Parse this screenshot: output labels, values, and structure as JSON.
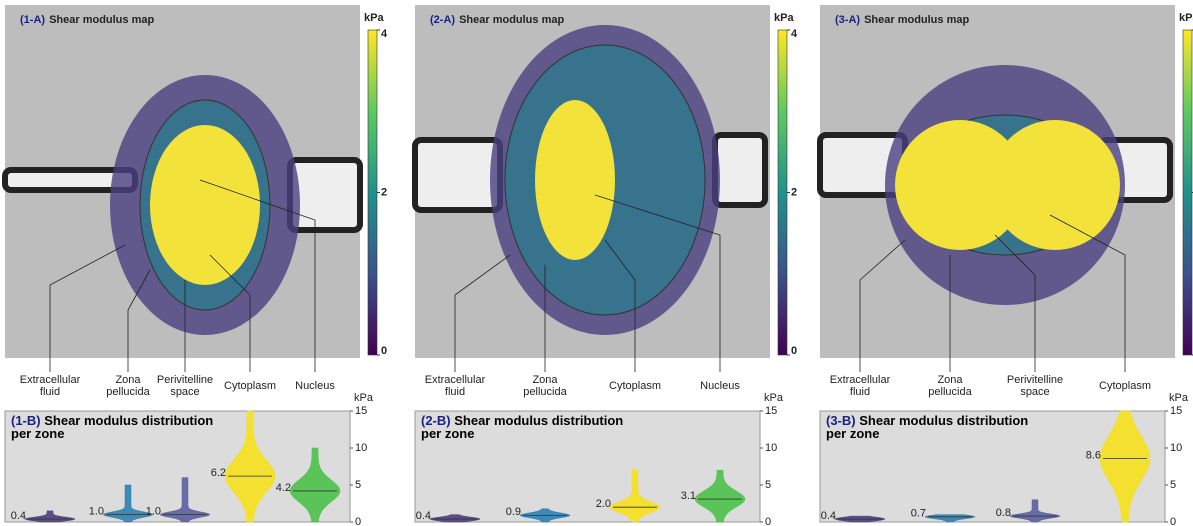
{
  "maps": [
    {
      "label": "(1-A)",
      "title": "Shear modulus map",
      "unit": "kPa",
      "lim": [
        0,
        4
      ],
      "ticks": [
        0,
        2,
        4
      ]
    },
    {
      "label": "(2-A)",
      "title": "Shear modulus map",
      "unit": "kPa",
      "lim": [
        0,
        4
      ],
      "ticks": [
        0,
        2,
        4
      ]
    },
    {
      "label": "(3-A)",
      "title": "Shear modulus map",
      "unit": "kPa",
      "lim": [
        0,
        4
      ],
      "ticks": [
        0,
        2,
        4
      ]
    }
  ],
  "chart_data": [
    {
      "type": "violin",
      "label": "(1-B)",
      "title": "Shear modulus distribution per zone",
      "y_unit": "kPa",
      "categories": [
        "Extracellular fluid",
        "Zona pellucida",
        "Perivitelline space",
        "Cytoplasm",
        "Nucleus"
      ],
      "values": [
        0.4,
        1.0,
        1.0,
        6.2,
        4.2
      ],
      "value_labels": [
        "0.4",
        "1.0",
        "1.0",
        "6.2",
        "4.2"
      ],
      "max": [
        1.5,
        5,
        6,
        15,
        10
      ],
      "colors": [
        "#4b3f7a",
        "#2c7fb0",
        "#5a5fa0",
        "#f5e01c",
        "#4cc14a"
      ],
      "ylim": [
        0,
        15
      ],
      "yticks": [
        0,
        5,
        10,
        15
      ]
    },
    {
      "type": "violin",
      "label": "(2-B)",
      "title": "Shear modulus distribution per zone",
      "y_unit": "kPa",
      "categories": [
        "Extracellular fluid",
        "Zona pellucida",
        "Cytoplasm",
        "Nucleus"
      ],
      "values": [
        0.4,
        0.9,
        2.0,
        3.1
      ],
      "value_labels": [
        "0.4",
        "0.9",
        "2.0",
        "3.1"
      ],
      "max": [
        1,
        1.8,
        7,
        7
      ],
      "colors": [
        "#4b3f7a",
        "#2c7fb0",
        "#f5e01c",
        "#4cc14a"
      ],
      "ylim": [
        0,
        15
      ],
      "yticks": [
        0,
        5,
        10,
        15
      ]
    },
    {
      "type": "violin",
      "label": "(3-B)",
      "title": "Shear modulus distribution per zone",
      "y_unit": "kPa",
      "categories": [
        "Extracellular fluid",
        "Zona pellucida",
        "Perivitelline space",
        "Cytoplasm"
      ],
      "values": [
        0.4,
        0.7,
        0.8,
        8.6
      ],
      "value_labels": [
        "0.4",
        "0.7",
        "0.8",
        "8.6"
      ],
      "max": [
        0.8,
        1,
        3,
        15
      ],
      "colors": [
        "#4b3f7a",
        "#2c7fb0",
        "#5a5fa0",
        "#f5e01c"
      ],
      "ylim": [
        0,
        15
      ],
      "yticks": [
        0,
        5,
        10,
        15
      ]
    }
  ]
}
